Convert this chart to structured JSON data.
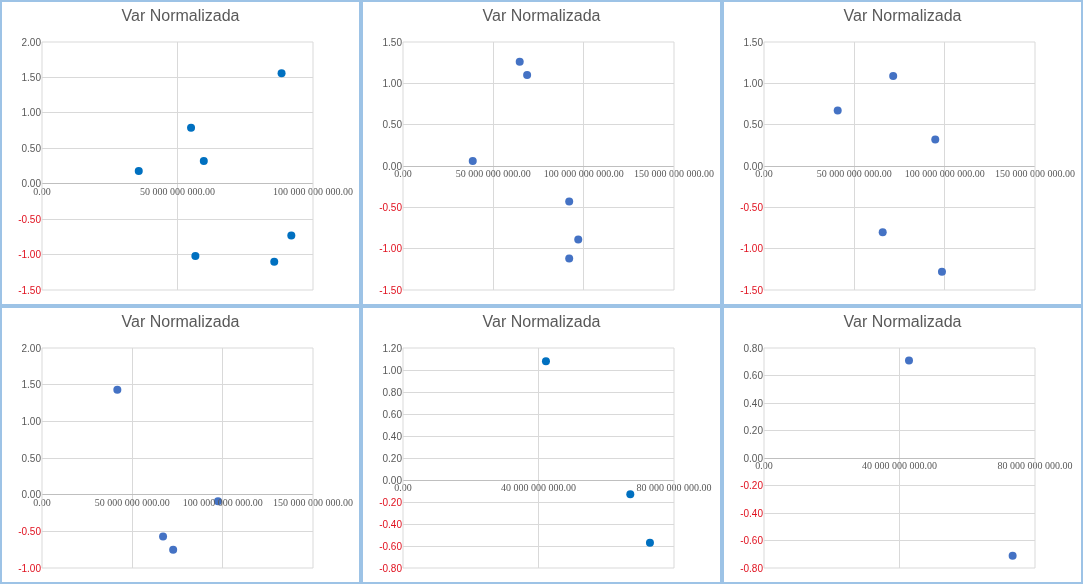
{
  "chart_data": [
    {
      "type": "scatter",
      "title": "Var Normalizada",
      "x": [
        35700000000.0,
        55000000000.0,
        59700000000.0,
        56600000000.0,
        88400000000.0,
        92000000000.0,
        85700000000.0
      ],
      "series": [
        {
          "color": "#0070c0",
          "values": [
            0.18,
            0.79,
            0.32,
            -1.02,
            1.56,
            -0.73,
            -1.1
          ]
        }
      ],
      "xlim": [
        0,
        100000000000.0
      ],
      "ylim": [
        -1.5,
        2
      ],
      "xticks": [
        {
          "value": 0,
          "label": "0.00"
        },
        {
          "value": 50000000000.0,
          "label": "50 000 000 000.00"
        },
        {
          "value": 100000000000.0,
          "label": "100 000 000 000.00"
        }
      ],
      "yticks": [
        {
          "value": -1.5,
          "label": "-1.50"
        },
        {
          "value": -1,
          "label": "-1.00"
        },
        {
          "value": -0.5,
          "label": "-0.50"
        },
        {
          "value": 0,
          "label": "0.00"
        },
        {
          "value": 0.5,
          "label": "0.50"
        },
        {
          "value": 1,
          "label": "1.00"
        },
        {
          "value": 1.5,
          "label": "1.50"
        },
        {
          "value": 2,
          "label": "2.00"
        }
      ],
      "grid": true,
      "marker": "circle"
    },
    {
      "type": "scatter",
      "title": "Var Normalizada",
      "x": [
        38600000000.0,
        64600000000.0,
        68700000000.0,
        92000000000.0,
        97000000000.0,
        92000000000.0
      ],
      "series": [
        {
          "color": "#4472c4",
          "values": [
            0.06,
            1.26,
            1.1,
            -0.43,
            -0.89,
            -1.12
          ]
        }
      ],
      "xlim": [
        0,
        150000000000.0
      ],
      "ylim": [
        -1.5,
        1.5
      ],
      "xticks": [
        {
          "value": 0,
          "label": "0.00"
        },
        {
          "value": 50000000000.0,
          "label": "50 000 000 000.00"
        },
        {
          "value": 100000000000.0,
          "label": "100 000 000 000.00"
        },
        {
          "value": 150000000000.0,
          "label": "150 000 000 000.00"
        }
      ],
      "yticks": [
        {
          "value": -1.5,
          "label": "-1.50"
        },
        {
          "value": -1,
          "label": "-1.00"
        },
        {
          "value": -0.5,
          "label": "-0.50"
        },
        {
          "value": 0,
          "label": "0.00"
        },
        {
          "value": 0.5,
          "label": "0.50"
        },
        {
          "value": 1,
          "label": "1.00"
        },
        {
          "value": 1.5,
          "label": "1.50"
        }
      ],
      "grid": true,
      "marker": "circle"
    },
    {
      "type": "scatter",
      "title": "Var Normalizada",
      "x": [
        40800000000.0,
        71500000000.0,
        94800000000.0,
        65700000000.0,
        98500000000.0
      ],
      "series": [
        {
          "color": "#4472c4",
          "values": [
            0.67,
            1.09,
            0.32,
            -0.8,
            -1.28
          ]
        }
      ],
      "xlim": [
        0,
        150000000000.0
      ],
      "ylim": [
        -1.5,
        1.5
      ],
      "xticks": [
        {
          "value": 0,
          "label": "0.00"
        },
        {
          "value": 50000000000.0,
          "label": "50 000 000 000.00"
        },
        {
          "value": 100000000000.0,
          "label": "100 000 000 000.00"
        },
        {
          "value": 150000000000.0,
          "label": "150 000 000 000.00"
        }
      ],
      "yticks": [
        {
          "value": -1.5,
          "label": "-1.50"
        },
        {
          "value": -1,
          "label": "-1.00"
        },
        {
          "value": -0.5,
          "label": "-0.50"
        },
        {
          "value": 0,
          "label": "0.00"
        },
        {
          "value": 0.5,
          "label": "0.50"
        },
        {
          "value": 1,
          "label": "1.00"
        },
        {
          "value": 1.5,
          "label": "1.50"
        }
      ],
      "grid": true,
      "marker": "circle"
    },
    {
      "type": "scatter",
      "title": "Var Normalizada",
      "x": [
        41700000000.0,
        67000000000.0,
        72600000000.0,
        97400000000.0
      ],
      "series": [
        {
          "color": "#4472c4",
          "values": [
            1.43,
            -0.57,
            -0.75,
            -0.09
          ]
        }
      ],
      "xlim": [
        0,
        150000000000.0
      ],
      "ylim": [
        -1,
        2
      ],
      "xticks": [
        {
          "value": 0,
          "label": "0.00"
        },
        {
          "value": 50000000000.0,
          "label": "50 000 000 000.00"
        },
        {
          "value": 100000000000.0,
          "label": "100 000 000 000.00"
        },
        {
          "value": 150000000000.0,
          "label": "150 000 000 000.00"
        }
      ],
      "yticks": [
        {
          "value": -1,
          "label": "-1.00"
        },
        {
          "value": -0.5,
          "label": "-0.50"
        },
        {
          "value": 0,
          "label": "0.00"
        },
        {
          "value": 0.5,
          "label": "0.50"
        },
        {
          "value": 1,
          "label": "1.00"
        },
        {
          "value": 1.5,
          "label": "1.50"
        },
        {
          "value": 2,
          "label": "2.00"
        }
      ],
      "grid": true,
      "marker": "circle"
    },
    {
      "type": "scatter",
      "title": "Var Normalizada",
      "x": [
        42200000000.0,
        67100000000.0,
        72900000000.0
      ],
      "series": [
        {
          "color": "#0070c0",
          "values": [
            1.08,
            -0.13,
            -0.57
          ]
        }
      ],
      "xlim": [
        0,
        80000000000.0
      ],
      "ylim": [
        -0.8,
        1.2
      ],
      "xticks": [
        {
          "value": 0,
          "label": "0.00"
        },
        {
          "value": 40000000000.0,
          "label": "40 000 000 000.00"
        },
        {
          "value": 80000000000.0,
          "label": "80 000 000 000.00"
        }
      ],
      "yticks": [
        {
          "value": -0.8,
          "label": "-0.80"
        },
        {
          "value": -0.6,
          "label": "-0.60"
        },
        {
          "value": -0.4,
          "label": "-0.40"
        },
        {
          "value": -0.2,
          "label": "-0.20"
        },
        {
          "value": 0,
          "label": "0.00"
        },
        {
          "value": 0.2,
          "label": "0.20"
        },
        {
          "value": 0.4,
          "label": "0.40"
        },
        {
          "value": 0.6,
          "label": "0.60"
        },
        {
          "value": 0.8,
          "label": "0.80"
        },
        {
          "value": 1,
          "label": "1.00"
        },
        {
          "value": 1.2,
          "label": "1.20"
        }
      ],
      "grid": true,
      "marker": "circle"
    },
    {
      "type": "scatter",
      "title": "Var Normalizada",
      "x": [
        42800000000.0,
        73400000000.0
      ],
      "series": [
        {
          "color": "#4472c4",
          "values": [
            0.71,
            -0.71
          ]
        }
      ],
      "xlim": [
        0,
        80000000000.0
      ],
      "ylim": [
        -0.8,
        0.8
      ],
      "xticks": [
        {
          "value": 0,
          "label": "0.00"
        },
        {
          "value": 40000000000.0,
          "label": "40 000 000 000.00"
        },
        {
          "value": 80000000000.0,
          "label": "80 000 000 000.00"
        }
      ],
      "yticks": [
        {
          "value": -0.8,
          "label": "-0.80"
        },
        {
          "value": -0.6,
          "label": "-0.60"
        },
        {
          "value": -0.4,
          "label": "-0.40"
        },
        {
          "value": -0.2,
          "label": "-0.20"
        },
        {
          "value": 0,
          "label": "0.00"
        },
        {
          "value": 0.2,
          "label": "0.20"
        },
        {
          "value": 0.4,
          "label": "0.40"
        },
        {
          "value": 0.6,
          "label": "0.60"
        },
        {
          "value": 0.8,
          "label": "0.80"
        }
      ],
      "grid": true,
      "marker": "circle"
    }
  ]
}
